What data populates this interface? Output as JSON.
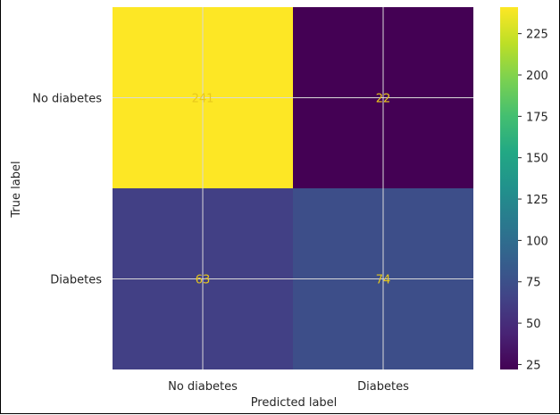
{
  "chart_data": {
    "type": "heatmap",
    "title": "",
    "xlabel": "Predicted label",
    "ylabel": "True label",
    "x_categories": [
      "No diabetes",
      "Diabetes"
    ],
    "y_categories": [
      "No diabetes",
      "Diabetes"
    ],
    "values": [
      [
        241,
        22
      ],
      [
        63,
        74
      ]
    ],
    "colormap": "viridis",
    "vmin": 22,
    "vmax": 241,
    "colorbar_ticks": [
      25,
      50,
      75,
      100,
      125,
      150,
      175,
      200,
      225
    ],
    "colorbar_tick_labels": [
      "25",
      "50",
      "75",
      "100",
      "125",
      "150",
      "175",
      "200",
      "225"
    ],
    "grid": true,
    "cell_text_color": "#e8c91c"
  }
}
